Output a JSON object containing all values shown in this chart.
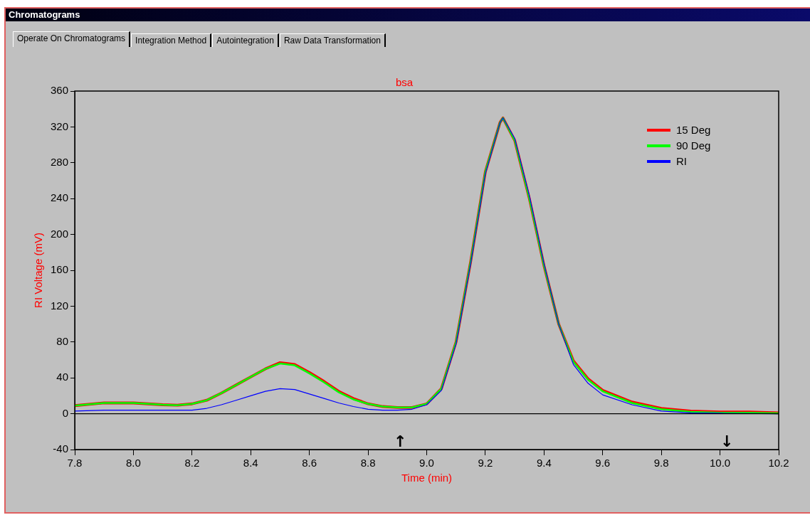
{
  "chart_data": {
    "type": "line",
    "title": "bsa",
    "xlabel": "Time (min)",
    "ylabel": "RI Voltage (mV)",
    "xlim": [
      7.8,
      10.2
    ],
    "xticks": [
      7.8,
      {
        "value": 8,
        "label": "8.0"
      },
      8.2,
      8.4,
      8.6,
      8.8,
      {
        "value": 9,
        "label": "9.0"
      },
      9.2,
      9.4,
      9.6,
      9.8,
      {
        "value": 10,
        "label": "10.0"
      },
      10.2
    ],
    "ylim": [
      -40,
      360
    ],
    "yticks": [
      -40,
      0,
      40,
      80,
      120,
      160,
      200,
      240,
      280,
      320,
      360
    ],
    "grid": false,
    "legend": "top right",
    "marker": "none",
    "line_style": "solid",
    "ref_lines": [
      {
        "axis": "y",
        "value": 0,
        "color": "#000000"
      }
    ],
    "annotations": [
      "Chromatograms",
      "Operate On Chromatograms",
      "Integration Method",
      "Autointegration",
      "Raw Data Transformation",
      "↑",
      "↓"
    ],
    "series": [
      {
        "name": "15 Deg",
        "color": "#ff0000",
        "x": [
          7.8,
          7.9,
          8.0,
          8.1,
          8.15,
          8.2,
          8.25,
          8.3,
          8.35,
          8.4,
          8.45,
          8.5,
          8.55,
          8.6,
          8.65,
          8.7,
          8.75,
          8.8,
          8.85,
          8.9,
          8.95,
          9.0,
          9.05,
          9.1,
          9.15,
          9.2,
          9.25,
          9.26,
          9.3,
          9.35,
          9.4,
          9.45,
          9.5,
          9.55,
          9.6,
          9.7,
          9.8,
          9.9,
          10.0,
          10.1,
          10.2
        ],
        "values": [
          9,
          12,
          12,
          10,
          9.5,
          11,
          15,
          23,
          32,
          41,
          50,
          57,
          55,
          46,
          36,
          25,
          17,
          11,
          8,
          7,
          7,
          11,
          28,
          80,
          170,
          270,
          325,
          330,
          305,
          240,
          165,
          100,
          59,
          39,
          26,
          13,
          6,
          3,
          2,
          2,
          1
        ]
      },
      {
        "name": "90 Deg",
        "color": "#00ff00",
        "x": [
          7.8,
          7.9,
          8.0,
          8.1,
          8.15,
          8.2,
          8.25,
          8.3,
          8.35,
          8.4,
          8.45,
          8.5,
          8.55,
          8.6,
          8.65,
          8.7,
          8.75,
          8.8,
          8.85,
          8.9,
          8.95,
          9.0,
          9.05,
          9.1,
          9.15,
          9.2,
          9.25,
          9.26,
          9.3,
          9.35,
          9.4,
          9.45,
          9.5,
          9.55,
          9.6,
          9.7,
          9.8,
          9.9,
          10.0,
          10.1,
          10.2
        ],
        "values": [
          9,
          12,
          12,
          10,
          9.5,
          11,
          15,
          23,
          32,
          41,
          50,
          56,
          54,
          45,
          35,
          24,
          16,
          11,
          8,
          7,
          7,
          11,
          28,
          80,
          170,
          270,
          325,
          330,
          305,
          240,
          165,
          100,
          58,
          38,
          25,
          12,
          5,
          2,
          1,
          1,
          0.5
        ]
      },
      {
        "name": "RI",
        "color": "#0000ff",
        "x": [
          7.8,
          7.9,
          8.0,
          8.1,
          8.2,
          8.25,
          8.3,
          8.35,
          8.4,
          8.45,
          8.5,
          8.55,
          8.6,
          8.65,
          8.7,
          8.75,
          8.8,
          8.85,
          8.9,
          8.95,
          9.0,
          9.05,
          9.1,
          9.15,
          9.2,
          9.25,
          9.26,
          9.3,
          9.35,
          9.4,
          9.45,
          9.5,
          9.55,
          9.6,
          9.7,
          9.8,
          9.9,
          10.0,
          10.2
        ],
        "values": [
          3,
          4,
          4,
          4,
          4,
          6,
          10,
          15,
          20,
          25,
          28,
          27,
          22,
          17,
          12,
          8,
          5,
          4,
          4,
          5,
          10,
          26,
          78,
          168,
          268,
          325,
          330,
          307,
          243,
          167,
          100,
          55,
          34,
          21,
          10,
          3,
          1,
          0.5,
          0
        ]
      }
    ]
  }
}
